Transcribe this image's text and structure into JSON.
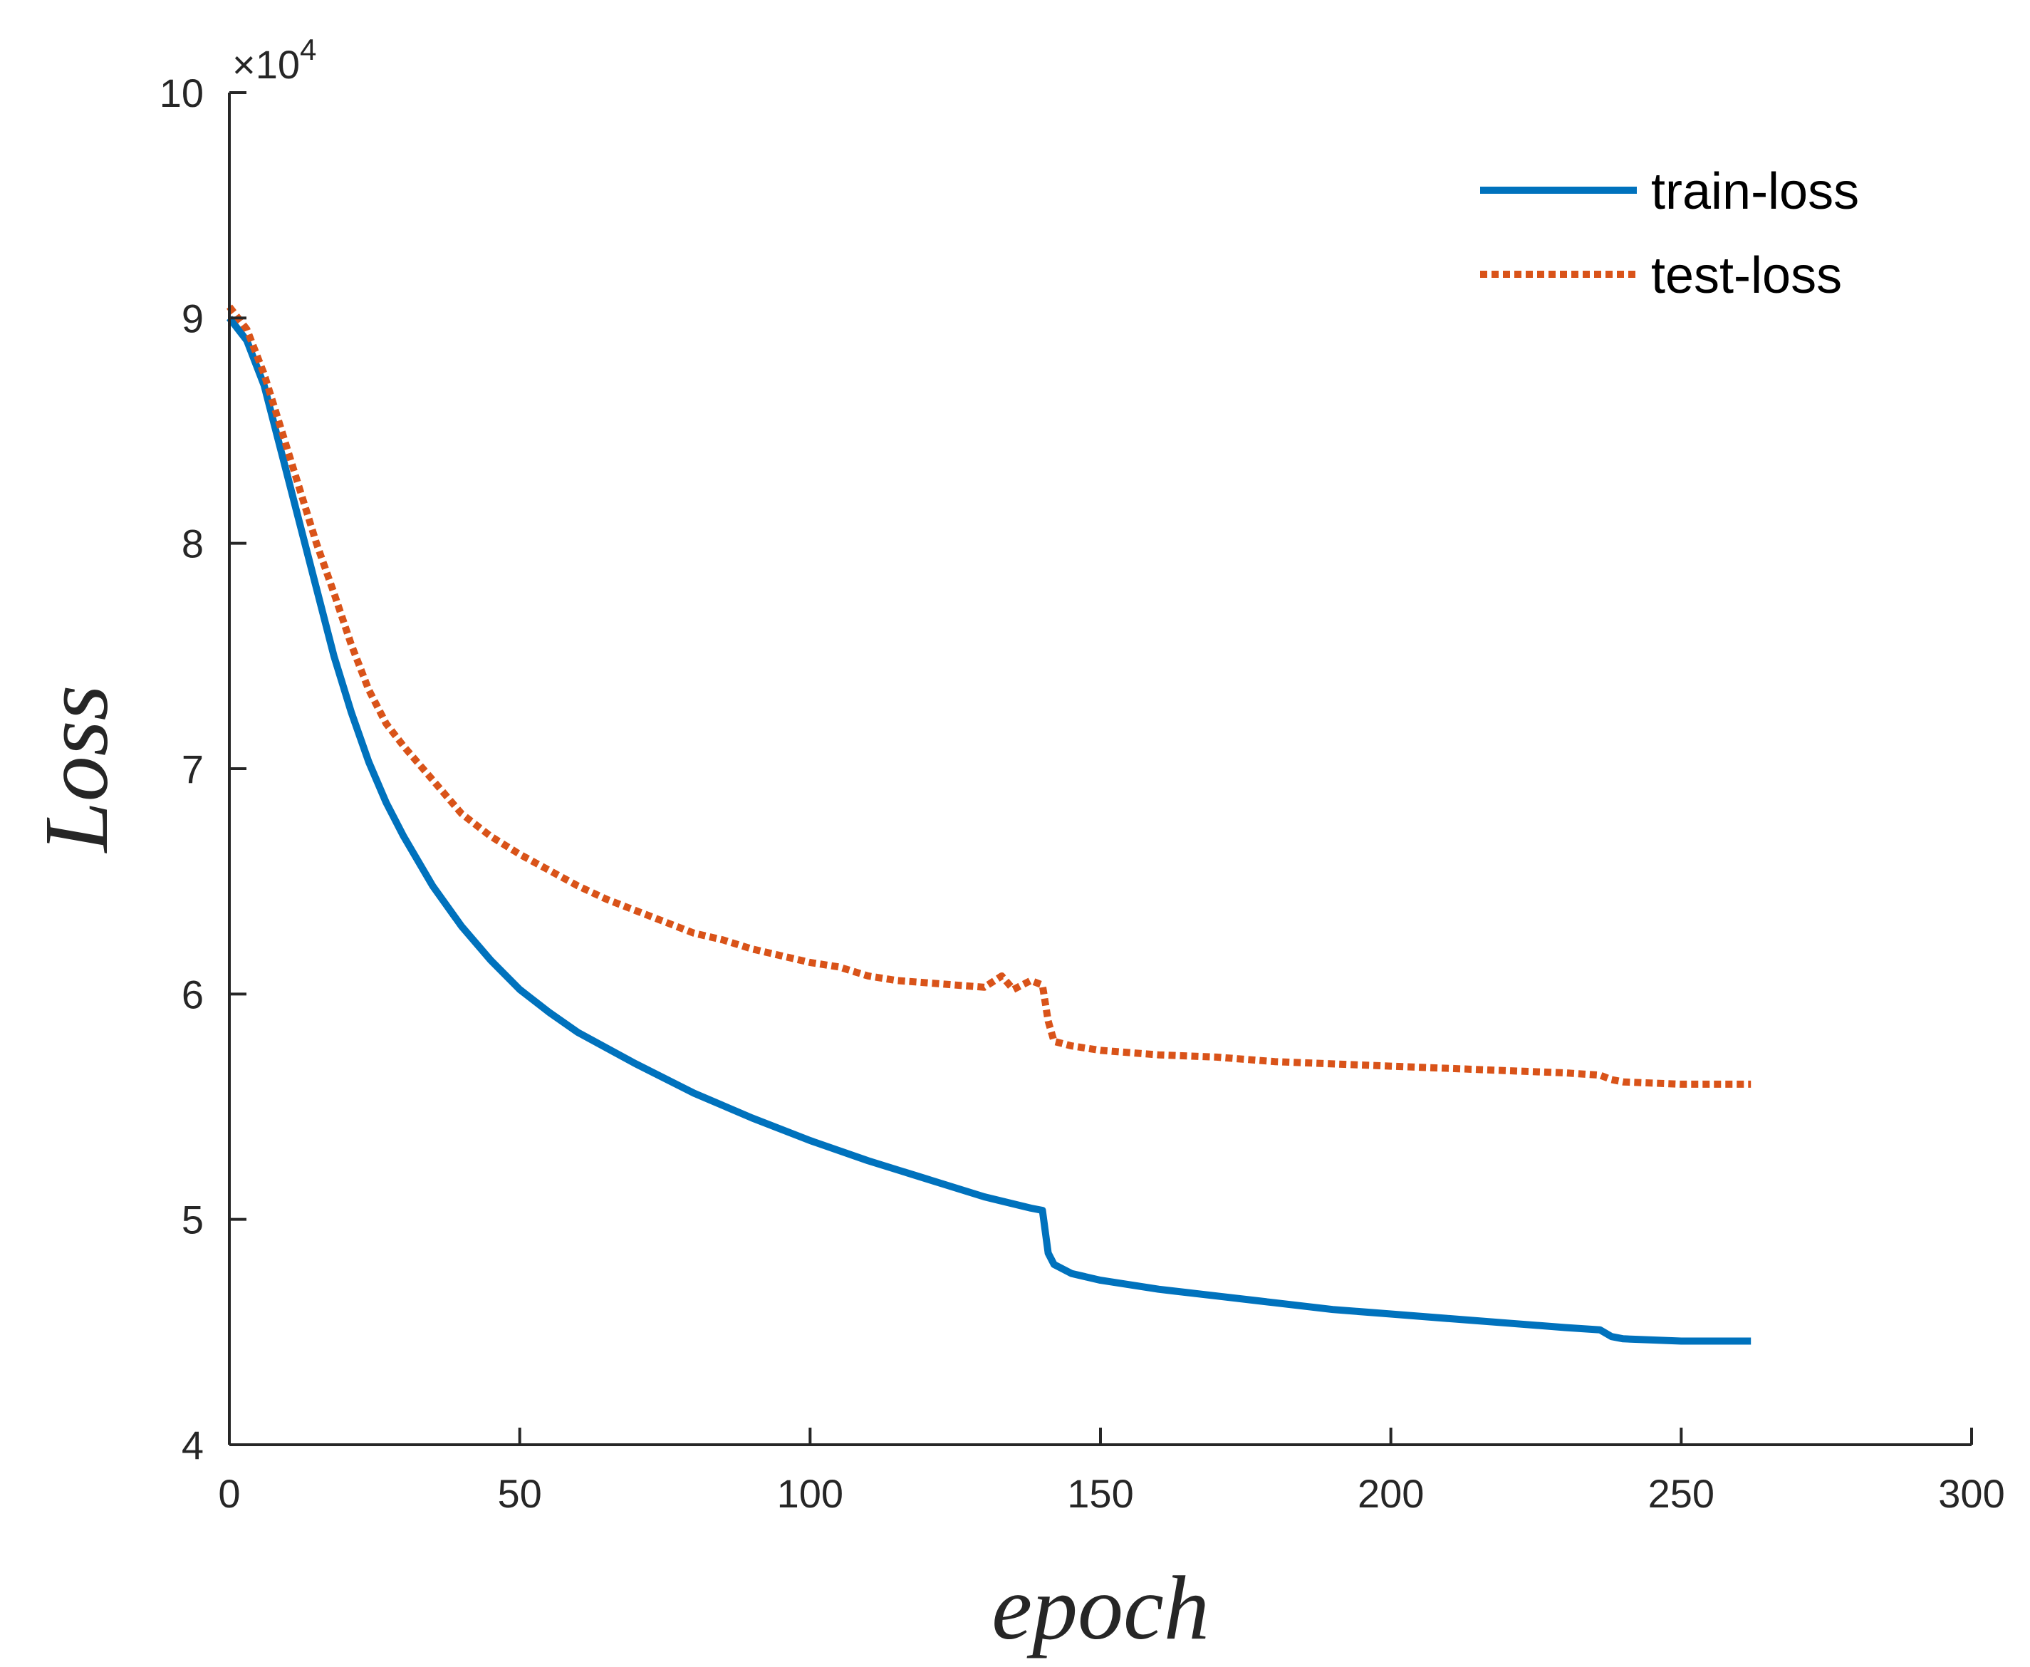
{
  "chart_data": {
    "type": "line",
    "title": "",
    "xlabel": "epoch",
    "ylabel": "Loss",
    "xlim": [
      0,
      300
    ],
    "ylim": [
      4,
      10
    ],
    "y_exponent_label": "×10",
    "y_exponent_power": "4",
    "xticks": [
      0,
      50,
      100,
      150,
      200,
      250,
      300
    ],
    "yticks": [
      4,
      5,
      6,
      7,
      8,
      9,
      10
    ],
    "xtick_labels": [
      "0",
      "50",
      "100",
      "150",
      "200",
      "250",
      "300"
    ],
    "ytick_labels": [
      "4",
      "5",
      "6",
      "7",
      "8",
      "9",
      "10"
    ],
    "grid": false,
    "legend_position": "top-right",
    "series": [
      {
        "name": "train-loss",
        "color": "#0072BD",
        "style": "solid",
        "x": [
          0,
          3,
          6,
          9,
          12,
          15,
          18,
          21,
          24,
          27,
          30,
          35,
          40,
          45,
          50,
          55,
          60,
          70,
          80,
          90,
          100,
          110,
          120,
          130,
          138,
          140,
          141,
          142,
          145,
          150,
          160,
          170,
          180,
          190,
          200,
          210,
          220,
          230,
          236,
          238,
          240,
          250,
          262
        ],
        "y": [
          9.0,
          8.9,
          8.7,
          8.4,
          8.1,
          7.8,
          7.5,
          7.25,
          7.03,
          6.85,
          6.7,
          6.48,
          6.3,
          6.15,
          6.02,
          5.92,
          5.83,
          5.69,
          5.56,
          5.45,
          5.35,
          5.26,
          5.18,
          5.1,
          5.05,
          5.04,
          4.85,
          4.8,
          4.76,
          4.73,
          4.69,
          4.66,
          4.63,
          4.6,
          4.58,
          4.56,
          4.54,
          4.52,
          4.51,
          4.48,
          4.47,
          4.46,
          4.46
        ]
      },
      {
        "name": "test-loss",
        "color": "#D95319",
        "style": "dotted",
        "x": [
          0,
          3,
          6,
          9,
          12,
          15,
          18,
          21,
          24,
          27,
          30,
          35,
          40,
          45,
          50,
          55,
          60,
          65,
          70,
          75,
          80,
          85,
          90,
          95,
          100,
          105,
          110,
          115,
          120,
          125,
          130,
          133,
          135,
          138,
          140,
          141,
          142,
          145,
          150,
          160,
          170,
          180,
          190,
          200,
          210,
          220,
          230,
          236,
          238,
          240,
          250,
          262
        ],
        "y": [
          9.05,
          8.95,
          8.75,
          8.5,
          8.25,
          8.0,
          7.78,
          7.55,
          7.35,
          7.2,
          7.1,
          6.95,
          6.8,
          6.7,
          6.62,
          6.55,
          6.48,
          6.42,
          6.37,
          6.32,
          6.27,
          6.24,
          6.2,
          6.17,
          6.14,
          6.12,
          6.08,
          6.06,
          6.05,
          6.04,
          6.03,
          6.08,
          6.02,
          6.06,
          6.04,
          5.88,
          5.79,
          5.77,
          5.75,
          5.73,
          5.72,
          5.7,
          5.69,
          5.68,
          5.67,
          5.66,
          5.65,
          5.64,
          5.62,
          5.61,
          5.6,
          5.6
        ]
      }
    ]
  }
}
